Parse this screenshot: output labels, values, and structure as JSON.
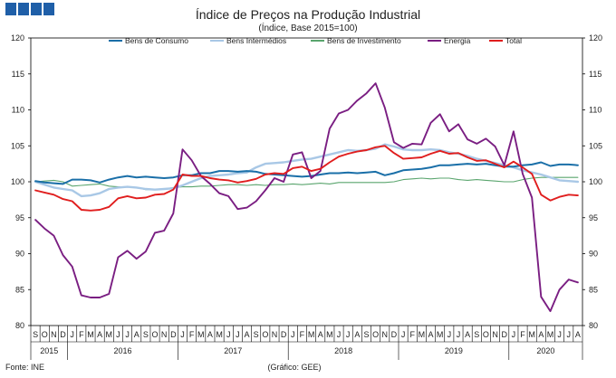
{
  "colors": {
    "logo_square": "#1f5fa8",
    "bens_consumo": "#1a6fa8",
    "bens_intermedios": "#a9c8e6",
    "bens_investimento": "#5aa56e",
    "energia": "#7a1e82",
    "total": "#e01e1e",
    "axis": "#000000"
  },
  "chart_data": {
    "type": "line",
    "title": "Índice de Preços na Produção Industrial",
    "subtitle": "(Índice, Base 2015=100)",
    "ylim": [
      80,
      120
    ],
    "yticks": [
      80,
      85,
      90,
      95,
      100,
      105,
      110,
      115,
      120
    ],
    "grid": false,
    "legend_position": "top",
    "x": [
      "2015-09",
      "2015-10",
      "2015-11",
      "2015-12",
      "2016-01",
      "2016-02",
      "2016-03",
      "2016-04",
      "2016-05",
      "2016-06",
      "2016-07",
      "2016-08",
      "2016-09",
      "2016-10",
      "2016-11",
      "2016-12",
      "2017-01",
      "2017-02",
      "2017-03",
      "2017-04",
      "2017-05",
      "2017-06",
      "2017-07",
      "2017-08",
      "2017-09",
      "2017-10",
      "2017-11",
      "2017-12",
      "2018-01",
      "2018-02",
      "2018-03",
      "2018-04",
      "2018-05",
      "2018-06",
      "2018-07",
      "2018-08",
      "2018-09",
      "2018-10",
      "2018-11",
      "2018-12",
      "2019-01",
      "2019-02",
      "2019-03",
      "2019-04",
      "2019-05",
      "2019-06",
      "2019-07",
      "2019-08",
      "2019-09",
      "2019-10",
      "2019-11",
      "2019-12",
      "2020-01",
      "2020-02",
      "2020-03",
      "2020-04",
      "2020-05",
      "2020-06",
      "2020-07",
      "2020-08"
    ],
    "month_labels": [
      "S",
      "O",
      "N",
      "D",
      "J",
      "F",
      "M",
      "A",
      "M",
      "J",
      "J",
      "A",
      "S",
      "O",
      "N",
      "D",
      "J",
      "F",
      "M",
      "A",
      "M",
      "J",
      "J",
      "A",
      "S",
      "O",
      "N",
      "D",
      "J",
      "F",
      "M",
      "A",
      "M",
      "J",
      "J",
      "A",
      "S",
      "O",
      "N",
      "D",
      "J",
      "F",
      "M",
      "A",
      "M",
      "J",
      "J",
      "A",
      "S",
      "O",
      "N",
      "D",
      "J",
      "F",
      "M",
      "A",
      "M",
      "J",
      "J",
      "A"
    ],
    "year_labels": [
      {
        "label": "2015",
        "start": 0,
        "count": 4
      },
      {
        "label": "2016",
        "start": 4,
        "count": 12
      },
      {
        "label": "2017",
        "start": 16,
        "count": 12
      },
      {
        "label": "2018",
        "start": 28,
        "count": 12
      },
      {
        "label": "2019",
        "start": 40,
        "count": 12
      },
      {
        "label": "2020",
        "start": 52,
        "count": 8
      }
    ],
    "series": [
      {
        "name": "Bens de Consumo",
        "key": "bens_consumo",
        "values": [
          100.1,
          99.9,
          99.8,
          99.7,
          100.3,
          100.3,
          100.2,
          99.9,
          100.3,
          100.6,
          100.8,
          100.6,
          100.7,
          100.6,
          100.5,
          100.6,
          100.9,
          100.9,
          101.2,
          101.2,
          101.5,
          101.5,
          101.4,
          101.5,
          101.4,
          101.1,
          101.0,
          100.9,
          100.8,
          100.7,
          100.8,
          101.0,
          101.2,
          101.2,
          101.3,
          101.2,
          101.3,
          101.4,
          100.9,
          101.2,
          101.6,
          101.7,
          101.8,
          102.0,
          102.3,
          102.3,
          102.4,
          102.5,
          102.4,
          102.5,
          102.3,
          102.1,
          102.1,
          102.3,
          102.4,
          102.7,
          102.2,
          102.4,
          102.4,
          102.3
        ]
      },
      {
        "name": "Bens Intermédios",
        "key": "bens_intermedios",
        "values": [
          100.0,
          99.6,
          99.2,
          99.0,
          98.8,
          98.0,
          98.1,
          98.4,
          99.0,
          99.2,
          99.3,
          99.2,
          99.0,
          98.9,
          99.0,
          99.1,
          99.5,
          100.0,
          100.5,
          100.8,
          100.9,
          101.0,
          101.2,
          101.3,
          102.0,
          102.5,
          102.6,
          102.7,
          102.9,
          103.1,
          103.2,
          103.5,
          103.8,
          104.1,
          104.4,
          104.3,
          104.4,
          104.6,
          105.2,
          104.9,
          104.5,
          104.4,
          104.4,
          104.5,
          104.4,
          104.1,
          103.9,
          103.6,
          103.2,
          102.9,
          102.6,
          102.3,
          102.0,
          101.6,
          101.3,
          101.0,
          100.6,
          100.2,
          100.1,
          100.0
        ]
      },
      {
        "name": "Bens de Investimento",
        "key": "bens_investimento",
        "values": [
          100.0,
          100.1,
          100.2,
          100.0,
          99.4,
          99.5,
          99.6,
          99.7,
          99.4,
          99.3,
          99.3,
          99.2,
          98.9,
          98.9,
          99.0,
          99.2,
          99.3,
          99.3,
          99.4,
          99.4,
          99.5,
          99.6,
          99.6,
          99.5,
          99.6,
          99.5,
          99.6,
          99.6,
          99.7,
          99.6,
          99.7,
          99.8,
          99.7,
          99.9,
          99.9,
          99.9,
          99.9,
          99.9,
          99.9,
          100.0,
          100.3,
          100.4,
          100.5,
          100.4,
          100.5,
          100.5,
          100.3,
          100.2,
          100.3,
          100.2,
          100.1,
          100.0,
          100.0,
          100.3,
          100.5,
          100.6,
          100.6,
          100.6,
          100.6,
          100.6
        ]
      },
      {
        "name": "Energia",
        "key": "energia",
        "values": [
          94.7,
          93.5,
          92.5,
          89.8,
          88.2,
          84.2,
          83.9,
          83.9,
          84.4,
          89.5,
          90.4,
          89.3,
          90.3,
          92.9,
          93.2,
          95.6,
          104.5,
          103.0,
          100.8,
          99.7,
          98.4,
          98.0,
          96.2,
          96.4,
          97.3,
          98.8,
          100.5,
          100.0,
          103.8,
          104.1,
          100.5,
          101.5,
          107.4,
          109.5,
          110.0,
          111.3,
          112.3,
          113.7,
          110.3,
          105.5,
          104.7,
          105.3,
          105.2,
          108.2,
          109.4,
          107.0,
          108.0,
          105.9,
          105.3,
          106.0,
          104.9,
          102.3,
          107.0,
          101.1,
          97.8,
          84.0,
          82.0,
          85.0,
          86.4,
          86.0
        ]
      },
      {
        "name": "Total",
        "key": "total",
        "values": [
          98.8,
          98.5,
          98.2,
          97.6,
          97.3,
          96.1,
          96.0,
          96.1,
          96.5,
          97.7,
          98.0,
          97.7,
          97.8,
          98.2,
          98.3,
          98.9,
          101.0,
          100.8,
          100.8,
          100.5,
          100.3,
          100.2,
          99.9,
          100.1,
          100.4,
          101.0,
          101.2,
          101.1,
          101.9,
          102.1,
          101.5,
          101.8,
          102.7,
          103.5,
          103.9,
          104.2,
          104.4,
          104.8,
          105.0,
          104.0,
          103.2,
          103.3,
          103.4,
          103.9,
          104.3,
          103.9,
          104.0,
          103.4,
          102.9,
          103.0,
          102.5,
          102.0,
          102.8,
          102.0,
          101.1,
          98.2,
          97.4,
          97.9,
          98.2,
          98.1
        ]
      }
    ]
  },
  "footer": {
    "source": "Fonte: INE",
    "credit": "(Gráfico: GEE)"
  }
}
